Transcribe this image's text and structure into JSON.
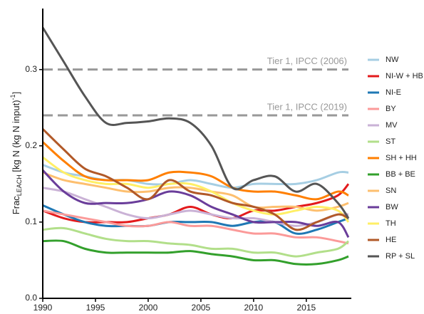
{
  "chart_data": {
    "type": "line",
    "ylabel": {
      "main": "Frac",
      "sub": "LEACH",
      "unit": " [kg N (kg N input)",
      "sup": "-1",
      "end": "]"
    },
    "x": [
      1990,
      1992,
      1994,
      1996,
      1998,
      2000,
      2002,
      2004,
      2006,
      2008,
      2010,
      2012,
      2014,
      2016,
      2018,
      2019
    ],
    "xlim": [
      1990,
      2019
    ],
    "xticks": [
      1990,
      1995,
      2000,
      2005,
      2010,
      2015
    ],
    "ylim": [
      0,
      0.38
    ],
    "yticks": [
      {
        "value": 0,
        "label": "0.0"
      },
      0.1,
      0.2,
      0.3
    ],
    "reference_lines": [
      {
        "value": 0.3,
        "label": "Tier 1, IPCC (2006)"
      },
      {
        "value": 0.24,
        "label": "Tier 1, IPCC (2019)"
      }
    ],
    "series": [
      {
        "name": "NW",
        "color": "#a6cee3",
        "values": [
          0.175,
          0.165,
          0.16,
          0.155,
          0.155,
          0.15,
          0.15,
          0.155,
          0.15,
          0.145,
          0.15,
          0.15,
          0.15,
          0.155,
          0.165,
          0.165
        ]
      },
      {
        "name": "NI-W + HB",
        "color": "#e31a1c",
        "values": [
          0.115,
          0.105,
          0.1,
          0.1,
          0.1,
          0.105,
          0.11,
          0.12,
          0.11,
          0.105,
          0.115,
          0.115,
          0.12,
          0.125,
          0.135,
          0.15
        ]
      },
      {
        "name": "NI-E",
        "color": "#1f78b4",
        "values": [
          0.122,
          0.11,
          0.1,
          0.095,
          0.095,
          0.095,
          0.1,
          0.1,
          0.1,
          0.095,
          0.1,
          0.1,
          0.085,
          0.09,
          0.1,
          0.105
        ]
      },
      {
        "name": "BY",
        "color": "#fb9a99",
        "values": [
          0.115,
          0.11,
          0.105,
          0.1,
          0.095,
          0.095,
          0.1,
          0.095,
          0.095,
          0.09,
          0.085,
          0.085,
          0.08,
          0.08,
          0.075,
          0.072
        ]
      },
      {
        "name": "MV",
        "color": "#cab2d6",
        "values": [
          0.145,
          0.14,
          0.13,
          0.12,
          0.11,
          0.105,
          0.11,
          0.115,
          0.11,
          0.105,
          0.105,
          0.1,
          0.095,
          0.1,
          0.11,
          0.11
        ]
      },
      {
        "name": "ST",
        "color": "#b2df8a",
        "values": [
          0.09,
          0.092,
          0.085,
          0.078,
          0.075,
          0.075,
          0.072,
          0.07,
          0.065,
          0.065,
          0.06,
          0.06,
          0.055,
          0.06,
          0.065,
          0.075
        ]
      },
      {
        "name": "SH + HH",
        "color": "#ff7f00",
        "values": [
          0.205,
          0.18,
          0.16,
          0.155,
          0.155,
          0.155,
          0.165,
          0.165,
          0.16,
          0.145,
          0.14,
          0.14,
          0.135,
          0.13,
          0.14,
          0.135
        ]
      },
      {
        "name": "BB + BE",
        "color": "#33a02c",
        "values": [
          0.075,
          0.075,
          0.065,
          0.06,
          0.06,
          0.06,
          0.06,
          0.062,
          0.058,
          0.055,
          0.05,
          0.05,
          0.045,
          0.045,
          0.05,
          0.055
        ]
      },
      {
        "name": "SN",
        "color": "#fdbf6f",
        "values": [
          0.165,
          0.155,
          0.15,
          0.145,
          0.14,
          0.14,
          0.145,
          0.145,
          0.14,
          0.135,
          0.12,
          0.12,
          0.12,
          0.115,
          0.12,
          0.125
        ]
      },
      {
        "name": "BW",
        "color": "#6a3d9a",
        "values": [
          0.168,
          0.14,
          0.125,
          0.125,
          0.125,
          0.13,
          0.14,
          0.135,
          0.12,
          0.11,
          0.1,
          0.1,
          0.1,
          0.095,
          0.1,
          0.08
        ]
      },
      {
        "name": "TH",
        "color": "#ffef66",
        "values": [
          0.185,
          0.165,
          0.155,
          0.15,
          0.15,
          0.145,
          0.15,
          0.15,
          0.14,
          0.125,
          0.115,
          0.11,
          0.115,
          0.12,
          0.115,
          0.1
        ]
      },
      {
        "name": "HE",
        "color": "#b15928",
        "values": [
          0.222,
          0.195,
          0.17,
          0.16,
          0.145,
          0.13,
          0.155,
          0.14,
          0.135,
          0.125,
          0.12,
          0.11,
          0.09,
          0.1,
          0.11,
          0.105
        ]
      },
      {
        "name": "RP + SL",
        "color": "#555555",
        "values": [
          0.355,
          0.31,
          0.265,
          0.23,
          0.23,
          0.232,
          0.236,
          0.23,
          0.2,
          0.145,
          0.155,
          0.16,
          0.14,
          0.15,
          0.125,
          0.105
        ]
      }
    ]
  }
}
